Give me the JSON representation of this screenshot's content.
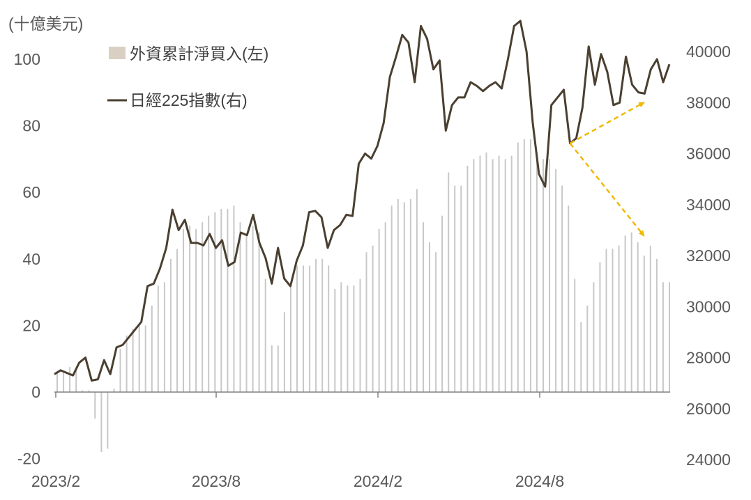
{
  "chart_data": {
    "type": "bar+line",
    "unit_label": "(十億美元)",
    "legend": [
      {
        "name": "外資累計淨買入(左)",
        "color": "#d9d0c3",
        "kind": "bar"
      },
      {
        "name": "日經225指數(右)",
        "color": "#4a3f30",
        "kind": "line"
      }
    ],
    "x_tick_labels": [
      "2023/2",
      "2023/8",
      "2024/2",
      "2024/8"
    ],
    "left_axis": {
      "ticks": [
        "-20",
        "0",
        "20",
        "40",
        "60",
        "80",
        "100"
      ],
      "ylim": [
        -20,
        100
      ]
    },
    "right_axis": {
      "ticks": [
        "24000",
        "26000",
        "28000",
        "30000",
        "32000",
        "34000",
        "36000",
        "38000",
        "40000"
      ],
      "ylim": [
        24000,
        41000
      ]
    },
    "series": [
      {
        "name": "外資累計淨買入(左)",
        "type": "bar",
        "values": [
          6,
          6.5,
          7.5,
          6.5,
          0.5,
          0.5,
          -8,
          -18,
          -17,
          1,
          13,
          17,
          19,
          20,
          20,
          26,
          32,
          33,
          40,
          43,
          49,
          50,
          49,
          51,
          53,
          54,
          55,
          55,
          56,
          51,
          47,
          50,
          48,
          34,
          14,
          14,
          24,
          33,
          38,
          38,
          38,
          40,
          40,
          38,
          31,
          33,
          32,
          32,
          34,
          42,
          44,
          49,
          51,
          56,
          58,
          57,
          58,
          61,
          51,
          45,
          42,
          53,
          66,
          62,
          62,
          68,
          70,
          71,
          72,
          70,
          71,
          70,
          71,
          75,
          76,
          76,
          72,
          70,
          70,
          67,
          62,
          56,
          34,
          21,
          26,
          33,
          39,
          43,
          43,
          44,
          47,
          48,
          45,
          41,
          44,
          40,
          33,
          33
        ]
      },
      {
        "name": "日經225指數(右)",
        "type": "line",
        "values": [
          27350,
          27500,
          27400,
          27300,
          27800,
          28000,
          27100,
          27150,
          27900,
          27350,
          28400,
          28500,
          28800,
          29100,
          29400,
          30800,
          30900,
          31500,
          32300,
          33800,
          33000,
          33400,
          32500,
          32500,
          32400,
          32850,
          32300,
          32600,
          31600,
          31750,
          32900,
          32800,
          33600,
          32500,
          31900,
          30900,
          32300,
          31100,
          30800,
          31800,
          32400,
          33700,
          33750,
          33500,
          32300,
          33000,
          33200,
          33600,
          33550,
          35600,
          36000,
          35800,
          36300,
          37200,
          39000,
          39800,
          40650,
          40350,
          38800,
          41000,
          40500,
          39300,
          39650,
          36900,
          37900,
          38200,
          38200,
          38800,
          38650,
          38450,
          38650,
          38800,
          38550,
          39700,
          41000,
          41200,
          40000,
          37200,
          35200,
          34700,
          37900,
          38200,
          38500,
          36400,
          36600,
          37800,
          40200,
          38700,
          39900,
          39200,
          37900,
          38000,
          39800,
          38700,
          38400,
          38350,
          39300,
          39700,
          38800,
          39500
        ]
      }
    ],
    "annotations": [
      {
        "type": "arrow",
        "style": "dashed",
        "color": "#f0b800",
        "from_index": 83,
        "to_index": 96,
        "target_axis": "right",
        "to_value": 38000
      },
      {
        "type": "arrow",
        "style": "dashed",
        "color": "#f0b800",
        "from_index": 83,
        "to_index": 96,
        "target_axis": "left",
        "to_value": 47
      }
    ],
    "grid": false
  }
}
